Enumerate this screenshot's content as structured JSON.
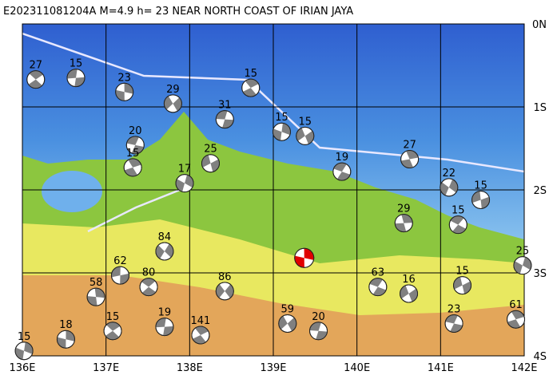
{
  "chart_data": {
    "type": "map",
    "title": "E202311081204A M=4.9 h= 23 NEAR NORTH COAST OF IRIAN JAYA",
    "xlim": [
      136,
      142
    ],
    "ylim": [
      -4,
      0
    ],
    "xticks": [
      {
        "value": 136,
        "label": "136E"
      },
      {
        "value": 137,
        "label": "137E"
      },
      {
        "value": 138,
        "label": "138E"
      },
      {
        "value": 139,
        "label": "139E"
      },
      {
        "value": 140,
        "label": "140E"
      },
      {
        "value": 141,
        "label": "141E"
      },
      {
        "value": 142,
        "label": "142E"
      }
    ],
    "yticks": [
      {
        "value": 0,
        "label": "0N"
      },
      {
        "value": -1,
        "label": "1S"
      },
      {
        "value": -2,
        "label": "2S"
      },
      {
        "value": -3,
        "label": "3S"
      },
      {
        "value": -4,
        "label": "4S"
      }
    ],
    "grid": true,
    "ball_color": "#808080",
    "main_event": {
      "lon": 139.37,
      "lat": -2.82,
      "color": "#e00000"
    },
    "events": {
      "lon": [
        136.64,
        136.16,
        137.22,
        137.8,
        138.42,
        138.73,
        139.1,
        139.38,
        137.35,
        137.32,
        137.94,
        138.25,
        139.82,
        140.63,
        141.1,
        141.48,
        141.21,
        140.56,
        137.7,
        137.17,
        137.51,
        136.88,
        138.42,
        137.7,
        137.08,
        136.52,
        139.17,
        139.54,
        138.13,
        136.02,
        140.62,
        141.16,
        141.9,
        141.98,
        141.26,
        140.25
      ],
      "lat": [
        -0.65,
        -0.67,
        -0.82,
        -0.96,
        -1.15,
        -0.77,
        -1.3,
        -1.35,
        -1.46,
        -1.73,
        -1.92,
        -1.68,
        -1.78,
        -1.63,
        -1.97,
        -2.12,
        -2.42,
        -2.4,
        -2.74,
        -3.03,
        -3.17,
        -3.29,
        -3.22,
        -3.65,
        -3.7,
        -3.8,
        -3.61,
        -3.7,
        -3.75,
        -3.94,
        -3.25,
        -3.61,
        -3.56,
        -2.91,
        -3.15,
        -3.17
      ],
      "depth": [
        15,
        27,
        23,
        29,
        31,
        15,
        15,
        15,
        20,
        15,
        17,
        25,
        19,
        27,
        22,
        15,
        15,
        29,
        84,
        62,
        80,
        58,
        86,
        19,
        15,
        18,
        59,
        20,
        141,
        15,
        16,
        23,
        61,
        25,
        15,
        63
      ]
    }
  }
}
